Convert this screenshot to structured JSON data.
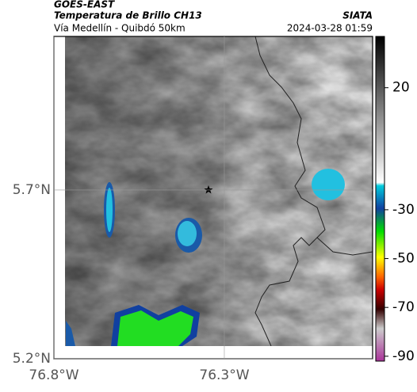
{
  "header": {
    "source": "GOES-EAST",
    "title": "Temperatura de Brillo CH13",
    "subtitle": "Vía Medellín - Quibdó 50km",
    "agency": "SIATA",
    "timestamp": "2024-03-28 01:59"
  },
  "map": {
    "lonlim": [
      -76.8,
      -75.865
    ],
    "latlim": [
      5.2,
      6.155
    ],
    "lon_ticks": [
      {
        "value": -76.8,
        "label": "76.8°W"
      },
      {
        "value": -76.3,
        "label": "76.3°W"
      }
    ],
    "lat_ticks": [
      {
        "value": 5.7,
        "label": "5.7°N"
      },
      {
        "value": 5.2,
        "label": "5.2°N"
      }
    ]
  },
  "colorbar": {
    "lim": [
      -92,
      41
    ],
    "ticks": [
      20,
      -30,
      -50,
      -70,
      -90
    ]
  }
}
